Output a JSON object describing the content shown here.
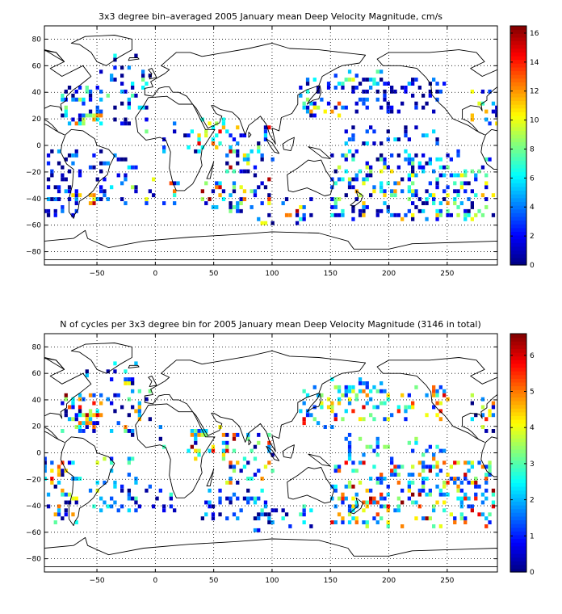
{
  "chart_data": [
    {
      "type": "heatmap",
      "title": "3x3 degree bin–averaged 2005 January mean Deep Velocity Magnitude, cm/s",
      "xlabel": "",
      "ylabel": "",
      "xlim": [
        -95,
        293
      ],
      "ylim": [
        -90,
        90
      ],
      "xticks": [
        -50,
        0,
        50,
        100,
        150,
        200,
        250
      ],
      "yticks": [
        -80,
        -60,
        -40,
        -20,
        0,
        20,
        40,
        60,
        80
      ],
      "grid": true,
      "bin_size_deg": 3,
      "colorbar": {
        "min": 0,
        "max": 16.5,
        "ticks": [
          0,
          2,
          4,
          6,
          8,
          10,
          12,
          14,
          16
        ],
        "colormap": "jet"
      },
      "clusters": [
        {
          "lon": [
            -80,
            -45
          ],
          "lat": [
            15,
            45
          ],
          "count": 55,
          "lo": 0,
          "hi": 13
        },
        {
          "lon": [
            -40,
            -5
          ],
          "lat": [
            10,
            55
          ],
          "count": 35,
          "lo": 0,
          "hi": 9
        },
        {
          "lon": [
            -95,
            -65
          ],
          "lat": [
            -52,
            -5
          ],
          "count": 55,
          "lo": 0,
          "hi": 5
        },
        {
          "lon": [
            -55,
            -15
          ],
          "lat": [
            -45,
            -5
          ],
          "count": 35,
          "lo": 0,
          "hi": 6
        },
        {
          "lon": [
            -75,
            -50
          ],
          "lat": [
            -45,
            -36
          ],
          "count": 10,
          "lo": 10,
          "hi": 16
        },
        {
          "lon": [
            -30,
            20
          ],
          "lat": [
            -45,
            -25
          ],
          "count": 18,
          "lo": 0,
          "hi": 16
        },
        {
          "lon": [
            0,
            45
          ],
          "lat": [
            -5,
            20
          ],
          "count": 10,
          "lo": 0,
          "hi": 8
        },
        {
          "lon": [
            30,
            60
          ],
          "lat": [
            -5,
            20
          ],
          "count": 25,
          "lo": 6,
          "hi": 16
        },
        {
          "lon": [
            40,
            100
          ],
          "lat": [
            -50,
            -28
          ],
          "count": 45,
          "lo": 0,
          "hi": 16
        },
        {
          "lon": [
            60,
            100
          ],
          "lat": [
            -25,
            15
          ],
          "count": 45,
          "lo": 0,
          "hi": 16
        },
        {
          "lon": [
            85,
            135
          ],
          "lat": [
            -60,
            -40
          ],
          "count": 25,
          "lo": 0,
          "hi": 16
        },
        {
          "lon": [
            125,
            160
          ],
          "lat": [
            20,
            50
          ],
          "count": 35,
          "lo": 0,
          "hi": 14
        },
        {
          "lon": [
            150,
            290
          ],
          "lat": [
            -55,
            -5
          ],
          "count": 260,
          "lo": 0,
          "hi": 12
        },
        {
          "lon": [
            160,
            250
          ],
          "lat": [
            -2,
            15
          ],
          "count": 30,
          "lo": 0,
          "hi": 6
        },
        {
          "lon": [
            160,
            250
          ],
          "lat": [
            25,
            50
          ],
          "count": 70,
          "lo": 0,
          "hi": 5
        },
        {
          "lon": [
            150,
            200
          ],
          "lat": [
            45,
            55
          ],
          "count": 15,
          "lo": 3,
          "hi": 12
        },
        {
          "lon": [
            270,
            293
          ],
          "lat": [
            15,
            45
          ],
          "count": 18,
          "lo": 0,
          "hi": 12
        },
        {
          "lon": [
            -60,
            -10
          ],
          "lat": [
            55,
            68
          ],
          "count": 10,
          "lo": 0,
          "hi": 12
        }
      ]
    },
    {
      "type": "heatmap",
      "title": "N of cycles per 3x3 degree bin for 2005 January mean Deep Velocity Magnitude (3146 in total)",
      "xlabel": "",
      "ylabel": "",
      "xlim": [
        -95,
        293
      ],
      "ylim": [
        -90,
        90
      ],
      "xticks": [
        -50,
        0,
        50,
        100,
        150,
        200,
        250
      ],
      "yticks": [
        -80,
        -60,
        -40,
        -20,
        0,
        20,
        40,
        60,
        80
      ],
      "grid": true,
      "bin_size_deg": 3,
      "total_cycles": 3146,
      "colorbar": {
        "min": 0,
        "max": 6.6,
        "ticks": [
          0,
          1,
          2,
          3,
          4,
          5,
          6
        ],
        "colormap": "jet"
      },
      "clusters": [
        {
          "lon": [
            -80,
            -45
          ],
          "lat": [
            15,
            45
          ],
          "count": 55,
          "lo": 0,
          "hi": 6.6
        },
        {
          "lon": [
            -40,
            -5
          ],
          "lat": [
            10,
            55
          ],
          "count": 35,
          "lo": 0,
          "hi": 5
        },
        {
          "lon": [
            -95,
            -65
          ],
          "lat": [
            -52,
            -5
          ],
          "count": 55,
          "lo": 0,
          "hi": 6
        },
        {
          "lon": [
            -55,
            -15
          ],
          "lat": [
            -45,
            -5
          ],
          "count": 35,
          "lo": 1,
          "hi": 4
        },
        {
          "lon": [
            -30,
            20
          ],
          "lat": [
            -45,
            -25
          ],
          "count": 18,
          "lo": 0,
          "hi": 3
        },
        {
          "lon": [
            0,
            45
          ],
          "lat": [
            -5,
            20
          ],
          "count": 10,
          "lo": 0,
          "hi": 4
        },
        {
          "lon": [
            30,
            60
          ],
          "lat": [
            -5,
            20
          ],
          "count": 25,
          "lo": 2,
          "hi": 6.6
        },
        {
          "lon": [
            40,
            100
          ],
          "lat": [
            -50,
            -28
          ],
          "count": 45,
          "lo": 0,
          "hi": 3
        },
        {
          "lon": [
            60,
            100
          ],
          "lat": [
            -25,
            15
          ],
          "count": 45,
          "lo": 0,
          "hi": 6.6
        },
        {
          "lon": [
            85,
            135
          ],
          "lat": [
            -60,
            -40
          ],
          "count": 25,
          "lo": 0,
          "hi": 3
        },
        {
          "lon": [
            125,
            160
          ],
          "lat": [
            20,
            50
          ],
          "count": 35,
          "lo": 1,
          "hi": 6
        },
        {
          "lon": [
            150,
            290
          ],
          "lat": [
            -55,
            -5
          ],
          "count": 260,
          "lo": 1,
          "hi": 6.6
        },
        {
          "lon": [
            160,
            250
          ],
          "lat": [
            -2,
            15
          ],
          "count": 30,
          "lo": 1,
          "hi": 4
        },
        {
          "lon": [
            160,
            250
          ],
          "lat": [
            25,
            50
          ],
          "count": 70,
          "lo": 1,
          "hi": 6
        },
        {
          "lon": [
            150,
            200
          ],
          "lat": [
            45,
            55
          ],
          "count": 15,
          "lo": 1,
          "hi": 3
        },
        {
          "lon": [
            270,
            293
          ],
          "lat": [
            15,
            45
          ],
          "count": 18,
          "lo": 0,
          "hi": 6.6
        },
        {
          "lon": [
            -60,
            -10
          ],
          "lat": [
            55,
            68
          ],
          "count": 10,
          "lo": 0,
          "hi": 3
        }
      ]
    }
  ]
}
